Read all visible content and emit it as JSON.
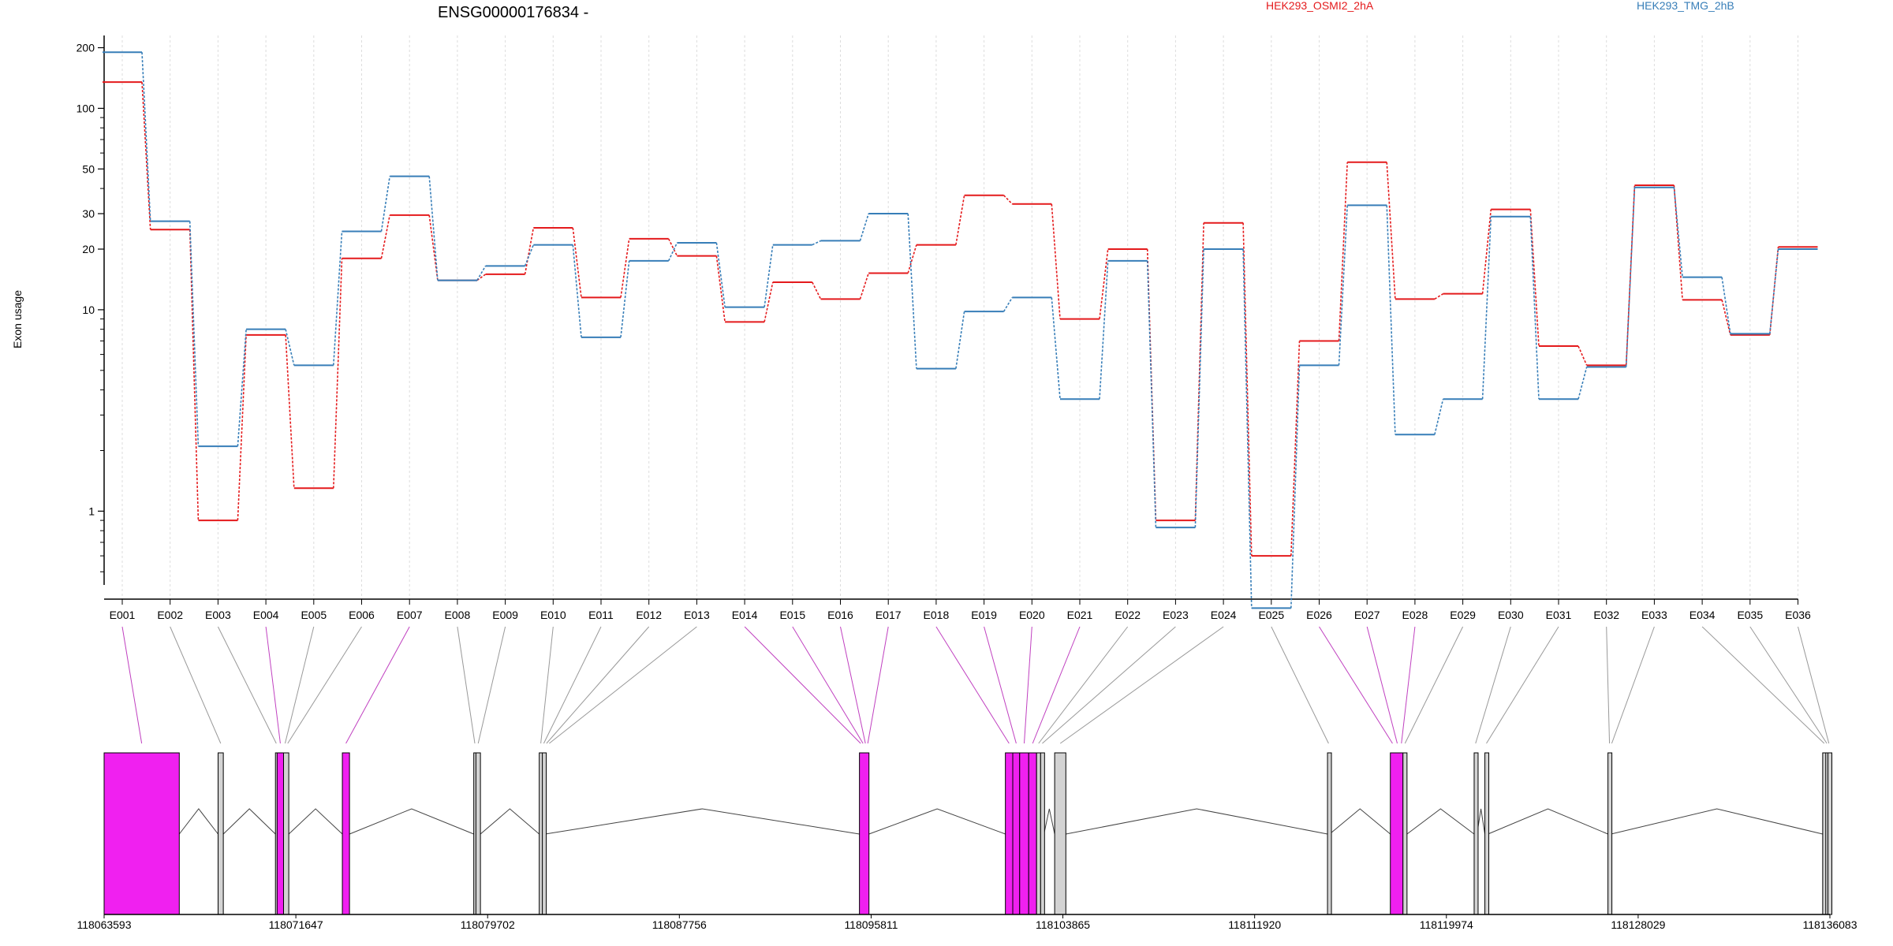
{
  "chart_data": {
    "type": "line",
    "title": "ENSG00000176834 -",
    "ylabel": "Exon usage",
    "y_scale": "log",
    "ylim": [
      0.45,
      230
    ],
    "yticks": [
      1,
      10,
      20,
      30,
      50,
      100,
      200
    ],
    "grid": false,
    "legend_placement": "top-right",
    "categories": [
      "E001",
      "E002",
      "E003",
      "E004",
      "E005",
      "E006",
      "E007",
      "E008",
      "E009",
      "E010",
      "E011",
      "E012",
      "E013",
      "E014",
      "E015",
      "E016",
      "E017",
      "E018",
      "E019",
      "E020",
      "E021",
      "E022",
      "E023",
      "E024",
      "E025",
      "E026",
      "E027",
      "E028",
      "E029",
      "E030",
      "E031",
      "E032",
      "E033",
      "E034",
      "E035",
      "E036"
    ],
    "series": [
      {
        "name": "HEK293_OSMI2_2hA",
        "color": "#e41a1c",
        "values": [
          135,
          25,
          0.9,
          7.5,
          1.3,
          18,
          29.5,
          14,
          15,
          25.5,
          11.5,
          22.5,
          18.5,
          8.7,
          13.7,
          11.3,
          15.2,
          21,
          37,
          33.5,
          9,
          20,
          0.9,
          27,
          0.6,
          7,
          54,
          11.3,
          12,
          31.5,
          6.6,
          5.3,
          41.5,
          11.2,
          7.5,
          20.5
        ]
      },
      {
        "name": "HEK293_TMG_2hB",
        "color": "#377eb8",
        "values": [
          190,
          27.5,
          2.1,
          8,
          5.3,
          24.5,
          46,
          14,
          16.5,
          21,
          7.3,
          17.5,
          21.5,
          10.3,
          21,
          22,
          30,
          5.1,
          9.8,
          11.5,
          3.6,
          17.5,
          0.83,
          20,
          0.33,
          5.3,
          33,
          2.4,
          3.6,
          29,
          3.6,
          5.2,
          40.5,
          14.5,
          7.6,
          20
        ]
      }
    ],
    "gene_model": {
      "coordinate_labels": [
        "118063593",
        "118071647",
        "118079702",
        "118087756",
        "118095811",
        "118103865",
        "118111920",
        "118119974",
        "118128029",
        "118136083"
      ],
      "highlight_color": "#f020f0",
      "exon_color": "#d3d3d3",
      "exons": [
        {
          "id": "E001",
          "start": 118063593,
          "end": 118066750,
          "highlight": true
        },
        {
          "id": "E002",
          "start": 118068380,
          "end": 118068600,
          "highlight": false
        },
        {
          "id": "E003",
          "start": 118070790,
          "end": 118070860,
          "highlight": false
        },
        {
          "id": "E004",
          "start": 118070860,
          "end": 118071130,
          "highlight": true
        },
        {
          "id": "E005",
          "start": 118071130,
          "end": 118071260,
          "highlight": false
        },
        {
          "id": "E006",
          "start": 118071260,
          "end": 118071350,
          "highlight": false
        },
        {
          "id": "E007",
          "start": 118073600,
          "end": 118073900,
          "highlight": true
        },
        {
          "id": "E008",
          "start": 118079120,
          "end": 118079210,
          "highlight": false
        },
        {
          "id": "E009",
          "start": 118079210,
          "end": 118079400,
          "highlight": false
        },
        {
          "id": "E010",
          "start": 118081870,
          "end": 118082000,
          "highlight": false
        },
        {
          "id": "E011",
          "start": 118082000,
          "end": 118082120,
          "highlight": false
        },
        {
          "id": "E012",
          "start": 118082120,
          "end": 118082230,
          "highlight": false
        },
        {
          "id": "E013",
          "start": 118082230,
          "end": 118082350,
          "highlight": false
        },
        {
          "id": "E014",
          "start": 118095320,
          "end": 118095420,
          "highlight": true
        },
        {
          "id": "E015",
          "start": 118095420,
          "end": 118095520,
          "highlight": true
        },
        {
          "id": "E016",
          "start": 118095520,
          "end": 118095620,
          "highlight": true
        },
        {
          "id": "E017",
          "start": 118095620,
          "end": 118095720,
          "highlight": true
        },
        {
          "id": "E018",
          "start": 118101450,
          "end": 118101760,
          "highlight": true
        },
        {
          "id": "E019",
          "start": 118101760,
          "end": 118102050,
          "highlight": true
        },
        {
          "id": "E020",
          "start": 118102050,
          "end": 118102430,
          "highlight": true
        },
        {
          "id": "E021",
          "start": 118102430,
          "end": 118102760,
          "highlight": true
        },
        {
          "id": "E022",
          "start": 118102760,
          "end": 118102930,
          "highlight": false
        },
        {
          "id": "E023",
          "start": 118102930,
          "end": 118103070,
          "highlight": false
        },
        {
          "id": "E024",
          "start": 118103520,
          "end": 118103990,
          "highlight": false
        },
        {
          "id": "E025",
          "start": 118114980,
          "end": 118115070,
          "highlight": false
        },
        {
          "id": "E026",
          "start": 118117620,
          "end": 118117800,
          "highlight": true
        },
        {
          "id": "E027",
          "start": 118117800,
          "end": 118118020,
          "highlight": true
        },
        {
          "id": "E028",
          "start": 118118020,
          "end": 118118150,
          "highlight": true
        },
        {
          "id": "E029",
          "start": 118118150,
          "end": 118118320,
          "highlight": false
        },
        {
          "id": "E030",
          "start": 118121140,
          "end": 118121260,
          "highlight": false
        },
        {
          "id": "E031",
          "start": 118121590,
          "end": 118121720,
          "highlight": false
        },
        {
          "id": "E032",
          "start": 118126760,
          "end": 118126890,
          "highlight": false
        },
        {
          "id": "E033",
          "start": 118126890,
          "end": 118126950,
          "highlight": false
        },
        {
          "id": "E034",
          "start": 118135780,
          "end": 118135910,
          "highlight": false
        },
        {
          "id": "E035",
          "start": 118135910,
          "end": 118136000,
          "highlight": false
        },
        {
          "id": "E036",
          "start": 118136000,
          "end": 118136083,
          "highlight": false
        }
      ],
      "blocks": [
        {
          "start": 118063593,
          "end": 118066750,
          "highlight": true
        },
        {
          "start": 118068380,
          "end": 118068600,
          "highlight": false
        },
        {
          "start": 118070790,
          "end": 118070860,
          "highlight": false
        },
        {
          "start": 118070860,
          "end": 118071130,
          "highlight": true
        },
        {
          "start": 118071130,
          "end": 118071350,
          "highlight": false
        },
        {
          "start": 118073600,
          "end": 118073900,
          "highlight": true
        },
        {
          "start": 118079120,
          "end": 118079210,
          "highlight": false
        },
        {
          "start": 118079210,
          "end": 118079400,
          "highlight": false
        },
        {
          "start": 118081870,
          "end": 118082000,
          "highlight": false
        },
        {
          "start": 118082000,
          "end": 118082120,
          "highlight": false
        },
        {
          "start": 118095320,
          "end": 118095720,
          "highlight": true
        },
        {
          "start": 118101450,
          "end": 118101760,
          "highlight": true
        },
        {
          "start": 118101760,
          "end": 118102050,
          "highlight": true
        },
        {
          "start": 118102050,
          "end": 118102430,
          "highlight": true
        },
        {
          "start": 118102430,
          "end": 118102760,
          "highlight": true
        },
        {
          "start": 118102760,
          "end": 118102930,
          "highlight": false
        },
        {
          "start": 118102930,
          "end": 118103070,
          "highlight": false
        },
        {
          "start": 118103520,
          "end": 118103990,
          "highlight": false
        },
        {
          "start": 118114980,
          "end": 118115070,
          "highlight": false
        },
        {
          "start": 118117620,
          "end": 118118150,
          "highlight": true
        },
        {
          "start": 118118150,
          "end": 118118320,
          "highlight": false
        },
        {
          "start": 118121140,
          "end": 118121260,
          "highlight": false
        },
        {
          "start": 118121590,
          "end": 118121720,
          "highlight": false
        },
        {
          "start": 118126760,
          "end": 118126890,
          "highlight": false
        },
        {
          "start": 118135780,
          "end": 118135910,
          "highlight": false
        },
        {
          "start": 118135910,
          "end": 118136000,
          "highlight": false
        },
        {
          "start": 118136000,
          "end": 118136083,
          "highlight": false
        }
      ]
    }
  }
}
